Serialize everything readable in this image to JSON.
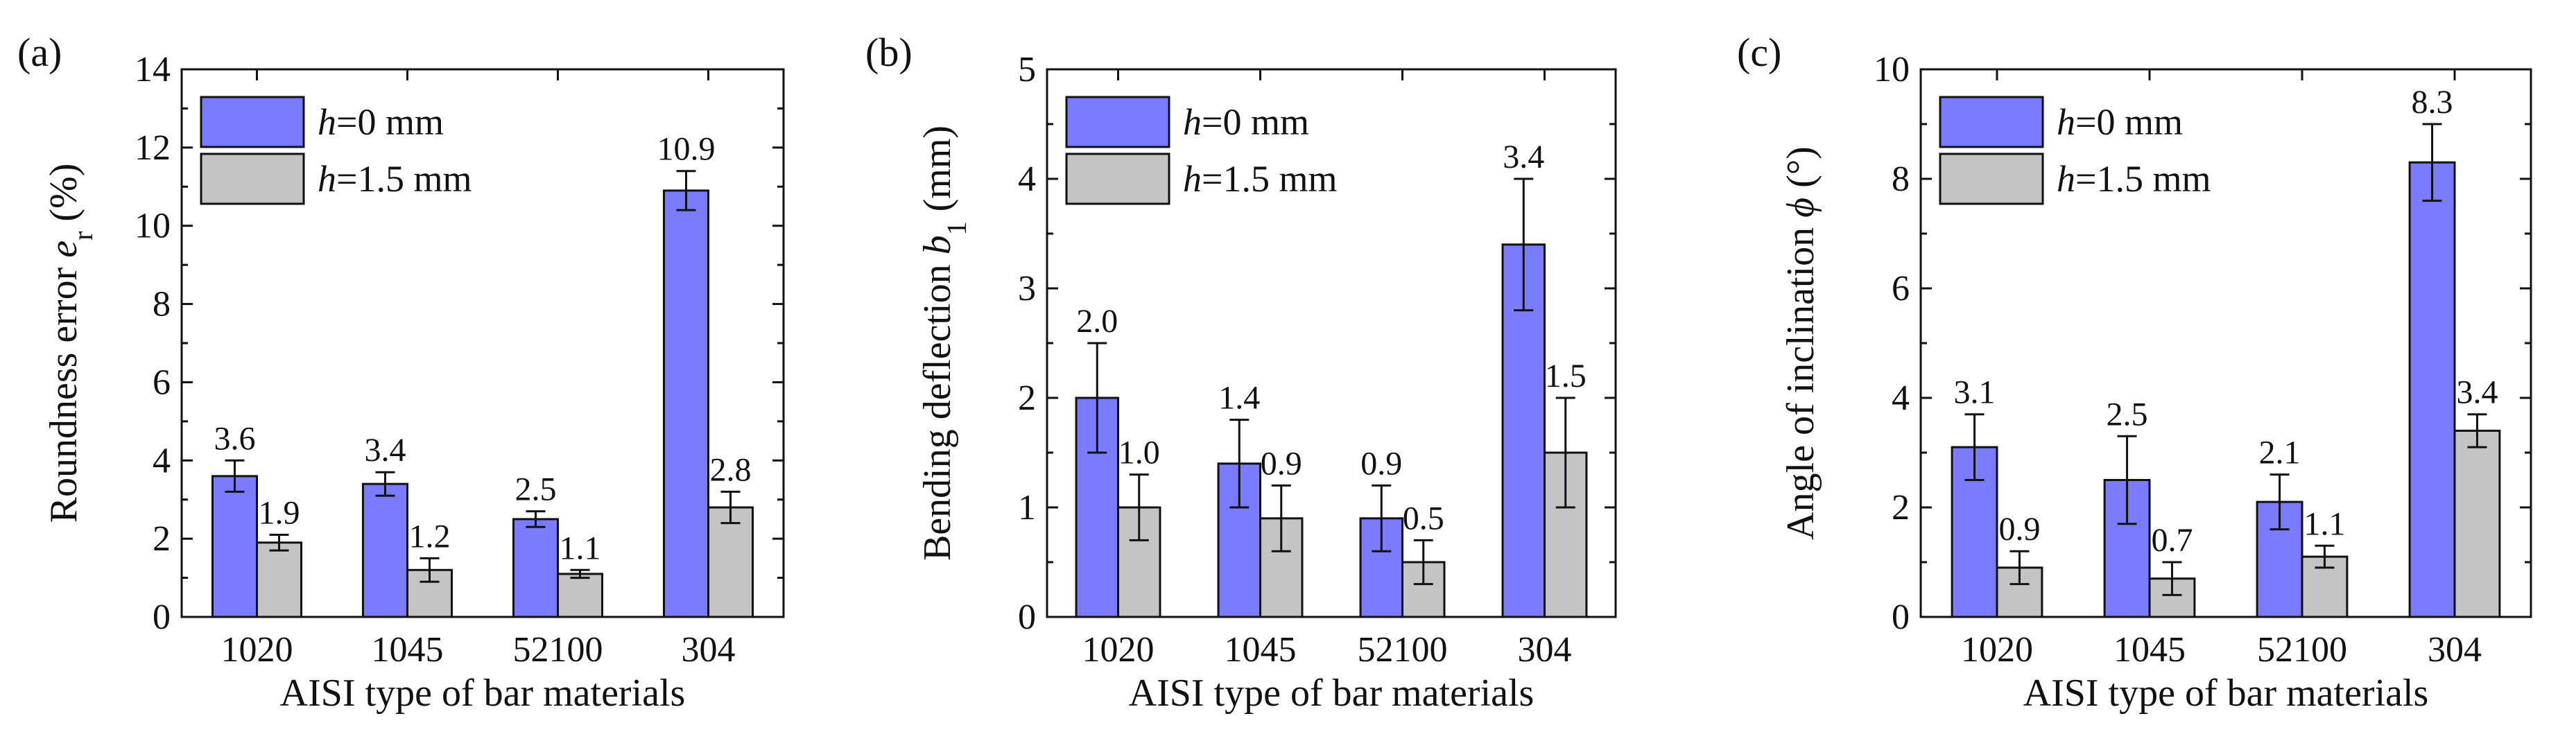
{
  "colors": {
    "series0": "#7b7bff",
    "series1": "#c4c4c4"
  },
  "chart_data": [
    {
      "panel": "(a)",
      "type": "bar",
      "categories": [
        "1020",
        "1045",
        "52100",
        "304"
      ],
      "xlabel": "AISI type of bar materials",
      "ylabel_main": "Roundness error ",
      "ylabel_var": "e",
      "ylabel_sub": "r",
      "ylabel_suffix": " (%)",
      "ylim": [
        0,
        14
      ],
      "yticks": [
        0,
        2,
        4,
        6,
        8,
        10,
        12,
        14
      ],
      "ytick_labels": [
        "0",
        "2",
        "4",
        "6",
        "8",
        "10",
        "12",
        "14"
      ],
      "legend_position": "top-left",
      "series": [
        {
          "name_var": "h",
          "name_rest": "=0 mm",
          "values": [
            3.6,
            3.4,
            2.5,
            10.9
          ],
          "errors": [
            0.4,
            0.3,
            0.2,
            0.5
          ],
          "labels": [
            "3.6",
            "3.4",
            "2.5",
            "10.9"
          ]
        },
        {
          "name_var": "h",
          "name_rest": "=1.5 mm",
          "values": [
            1.9,
            1.2,
            1.1,
            2.8
          ],
          "errors": [
            0.2,
            0.3,
            0.1,
            0.4
          ],
          "labels": [
            "1.9",
            "1.2",
            "1.1",
            "2.8"
          ]
        }
      ]
    },
    {
      "panel": "(b)",
      "type": "bar",
      "categories": [
        "1020",
        "1045",
        "52100",
        "304"
      ],
      "xlabel": "AISI type of bar materials",
      "ylabel_main": "Bending deflection ",
      "ylabel_var": "b",
      "ylabel_sub": "1",
      "ylabel_suffix": " (mm)",
      "ylim": [
        0,
        5
      ],
      "yticks": [
        0,
        1,
        2,
        3,
        4,
        5
      ],
      "ytick_labels": [
        "0",
        "1",
        "2",
        "3",
        "4",
        "5"
      ],
      "legend_position": "top-left",
      "series": [
        {
          "name_var": "h",
          "name_rest": "=0 mm",
          "values": [
            2.0,
            1.4,
            0.9,
            3.4
          ],
          "errors": [
            0.5,
            0.4,
            0.3,
            0.6
          ],
          "labels": [
            "2.0",
            "1.4",
            "0.9",
            "3.4"
          ]
        },
        {
          "name_var": "h",
          "name_rest": "=1.5 mm",
          "values": [
            1.0,
            0.9,
            0.5,
            1.5
          ],
          "errors": [
            0.3,
            0.3,
            0.2,
            0.5
          ],
          "labels": [
            "1.0",
            "0.9",
            "0.5",
            "1.5"
          ]
        }
      ]
    },
    {
      "panel": "(c)",
      "type": "bar",
      "categories": [
        "1020",
        "1045",
        "52100",
        "304"
      ],
      "xlabel": "AISI type of bar materials",
      "ylabel_main": "Angle of inclination ",
      "ylabel_var": "ϕ",
      "ylabel_sub": "",
      "ylabel_suffix": " (°)",
      "ylim": [
        0,
        10
      ],
      "yticks": [
        0,
        2,
        4,
        6,
        8,
        10
      ],
      "ytick_labels": [
        "0",
        "2",
        "4",
        "6",
        "8",
        "10"
      ],
      "legend_position": "top-left",
      "series": [
        {
          "name_var": "h",
          "name_rest": "=0 mm",
          "values": [
            3.1,
            2.5,
            2.1,
            8.3
          ],
          "errors": [
            0.6,
            0.8,
            0.5,
            0.7
          ],
          "labels": [
            "3.1",
            "2.5",
            "2.1",
            "8.3"
          ]
        },
        {
          "name_var": "h",
          "name_rest": "=1.5 mm",
          "values": [
            0.9,
            0.7,
            1.1,
            3.4
          ],
          "errors": [
            0.3,
            0.3,
            0.2,
            0.3
          ],
          "labels": [
            "0.9",
            "0.7",
            "1.1",
            "3.4"
          ]
        }
      ]
    }
  ]
}
